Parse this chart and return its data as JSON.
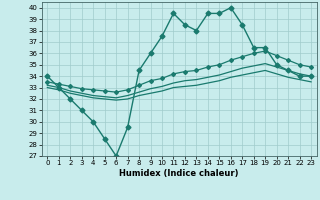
{
  "xlabel": "Humidex (Indice chaleur)",
  "bg_color": "#c8ecec",
  "grid_color": "#a0cccc",
  "line_color": "#1a7a6e",
  "xlim": [
    -0.5,
    23.5
  ],
  "ylim": [
    27,
    40.5
  ],
  "yticks": [
    27,
    28,
    29,
    30,
    31,
    32,
    33,
    34,
    35,
    36,
    37,
    38,
    39,
    40
  ],
  "xticks": [
    0,
    1,
    2,
    3,
    4,
    5,
    6,
    7,
    8,
    9,
    10,
    11,
    12,
    13,
    14,
    15,
    16,
    17,
    18,
    19,
    20,
    21,
    22,
    23
  ],
  "series": [
    {
      "x": [
        0,
        1,
        2,
        3,
        4,
        5,
        6,
        7,
        8,
        9,
        10,
        11,
        12,
        13,
        14,
        15,
        16,
        17,
        18,
        19,
        20,
        21,
        22,
        23
      ],
      "y": [
        34,
        33,
        32,
        31,
        30,
        28.5,
        27,
        29.5,
        34.5,
        36,
        37.5,
        39.5,
        38.5,
        38,
        39.5,
        39.5,
        40,
        38.5,
        36.5,
        36.5,
        35,
        34.5,
        34,
        34
      ],
      "marker": "D",
      "markersize": 2.5,
      "linewidth": 1.0
    },
    {
      "x": [
        0,
        1,
        2,
        3,
        4,
        5,
        6,
        7,
        8,
        9,
        10,
        11,
        12,
        13,
        14,
        15,
        16,
        17,
        18,
        19,
        20,
        21,
        22,
        23
      ],
      "y": [
        33.5,
        33.3,
        33.1,
        32.9,
        32.8,
        32.7,
        32.6,
        32.8,
        33.2,
        33.6,
        33.8,
        34.2,
        34.4,
        34.5,
        34.8,
        35.0,
        35.4,
        35.7,
        36.0,
        36.2,
        35.8,
        35.4,
        35.0,
        34.8
      ],
      "marker": "D",
      "markersize": 2.0,
      "linewidth": 0.9
    },
    {
      "x": [
        0,
        1,
        2,
        3,
        4,
        5,
        6,
        7,
        8,
        9,
        10,
        11,
        12,
        13,
        14,
        15,
        16,
        17,
        18,
        19,
        20,
        21,
        22,
        23
      ],
      "y": [
        33.0,
        32.8,
        32.5,
        32.3,
        32.1,
        32.0,
        31.9,
        32.0,
        32.3,
        32.5,
        32.7,
        33.0,
        33.1,
        33.2,
        33.4,
        33.6,
        33.9,
        34.1,
        34.3,
        34.5,
        34.2,
        33.9,
        33.7,
        33.5
      ],
      "marker": null,
      "markersize": 0,
      "linewidth": 0.9
    },
    {
      "x": [
        0,
        1,
        2,
        3,
        4,
        5,
        6,
        7,
        8,
        9,
        10,
        11,
        12,
        13,
        14,
        15,
        16,
        17,
        18,
        19,
        20,
        21,
        22,
        23
      ],
      "y": [
        33.2,
        33.0,
        32.7,
        32.5,
        32.3,
        32.2,
        32.1,
        32.3,
        32.6,
        32.9,
        33.1,
        33.4,
        33.6,
        33.7,
        33.9,
        34.1,
        34.4,
        34.7,
        34.9,
        35.1,
        34.8,
        34.5,
        34.2,
        34.0
      ],
      "marker": null,
      "markersize": 0,
      "linewidth": 0.9
    }
  ]
}
